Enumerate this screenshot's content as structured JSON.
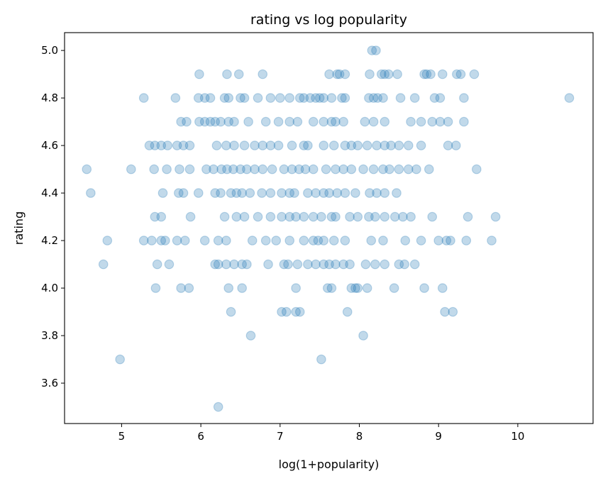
{
  "chart_data": {
    "type": "scatter",
    "title": "rating vs log popularity",
    "xlabel": "log(1+popularity)",
    "ylabel": "rating",
    "xlim": [
      4.28,
      10.95
    ],
    "ylim": [
      3.43,
      5.075
    ],
    "x_ticks": [
      5,
      6,
      7,
      8,
      9,
      10
    ],
    "y_ticks": [
      3.6,
      3.8,
      4.0,
      4.2,
      4.4,
      4.6,
      4.8,
      5.0
    ],
    "x_tick_labels": [
      "5",
      "6",
      "7",
      "8",
      "9",
      "10"
    ],
    "y_tick_labels": [
      "3.6",
      "3.8",
      "4.0",
      "4.2",
      "4.4",
      "4.6",
      "4.8",
      "5.0"
    ],
    "grid": false,
    "marker_color": "#1f77b4",
    "marker_alpha": 0.28,
    "points": [
      [
        8.16,
        5.0
      ],
      [
        8.21,
        5.0
      ],
      [
        5.98,
        4.9
      ],
      [
        6.33,
        4.9
      ],
      [
        6.48,
        4.9
      ],
      [
        6.78,
        4.9
      ],
      [
        7.62,
        4.9
      ],
      [
        7.72,
        4.9
      ],
      [
        7.75,
        4.9
      ],
      [
        7.82,
        4.9
      ],
      [
        8.13,
        4.9
      ],
      [
        8.28,
        4.9
      ],
      [
        8.32,
        4.9
      ],
      [
        8.37,
        4.9
      ],
      [
        8.48,
        4.9
      ],
      [
        8.82,
        4.9
      ],
      [
        8.85,
        4.9
      ],
      [
        8.9,
        4.9
      ],
      [
        9.05,
        4.9
      ],
      [
        9.23,
        4.9
      ],
      [
        9.28,
        4.9
      ],
      [
        9.45,
        4.9
      ],
      [
        5.28,
        4.8
      ],
      [
        5.68,
        4.8
      ],
      [
        5.97,
        4.8
      ],
      [
        6.05,
        4.8
      ],
      [
        6.12,
        4.8
      ],
      [
        6.3,
        4.8
      ],
      [
        6.35,
        4.8
      ],
      [
        6.5,
        4.8
      ],
      [
        6.55,
        4.8
      ],
      [
        6.72,
        4.8
      ],
      [
        6.88,
        4.8
      ],
      [
        7.0,
        4.8
      ],
      [
        7.12,
        4.8
      ],
      [
        7.25,
        4.8
      ],
      [
        7.3,
        4.8
      ],
      [
        7.38,
        4.8
      ],
      [
        7.45,
        4.8
      ],
      [
        7.5,
        4.8
      ],
      [
        7.55,
        4.8
      ],
      [
        7.65,
        4.8
      ],
      [
        7.78,
        4.8
      ],
      [
        7.82,
        4.8
      ],
      [
        8.12,
        4.8
      ],
      [
        8.18,
        4.8
      ],
      [
        8.23,
        4.8
      ],
      [
        8.3,
        4.8
      ],
      [
        8.52,
        4.8
      ],
      [
        8.7,
        4.8
      ],
      [
        8.95,
        4.8
      ],
      [
        9.02,
        4.8
      ],
      [
        9.32,
        4.8
      ],
      [
        10.65,
        4.8
      ],
      [
        5.75,
        4.7
      ],
      [
        5.82,
        4.7
      ],
      [
        5.98,
        4.7
      ],
      [
        6.05,
        4.7
      ],
      [
        6.12,
        4.7
      ],
      [
        6.18,
        4.7
      ],
      [
        6.25,
        4.7
      ],
      [
        6.35,
        4.7
      ],
      [
        6.42,
        4.7
      ],
      [
        6.6,
        4.7
      ],
      [
        6.82,
        4.7
      ],
      [
        6.98,
        4.7
      ],
      [
        7.12,
        4.7
      ],
      [
        7.22,
        4.7
      ],
      [
        7.42,
        4.7
      ],
      [
        7.55,
        4.7
      ],
      [
        7.65,
        4.7
      ],
      [
        7.7,
        4.7
      ],
      [
        7.8,
        4.7
      ],
      [
        8.07,
        4.7
      ],
      [
        8.18,
        4.7
      ],
      [
        8.32,
        4.7
      ],
      [
        8.65,
        4.7
      ],
      [
        8.78,
        4.7
      ],
      [
        8.92,
        4.7
      ],
      [
        9.02,
        4.7
      ],
      [
        9.12,
        4.7
      ],
      [
        9.32,
        4.7
      ],
      [
        5.35,
        4.6
      ],
      [
        5.42,
        4.6
      ],
      [
        5.5,
        4.6
      ],
      [
        5.58,
        4.6
      ],
      [
        5.7,
        4.6
      ],
      [
        5.78,
        4.6
      ],
      [
        5.86,
        4.6
      ],
      [
        6.2,
        4.6
      ],
      [
        6.32,
        4.6
      ],
      [
        6.42,
        4.6
      ],
      [
        6.55,
        4.6
      ],
      [
        6.68,
        4.6
      ],
      [
        6.78,
        4.6
      ],
      [
        6.88,
        4.6
      ],
      [
        6.98,
        4.6
      ],
      [
        7.15,
        4.6
      ],
      [
        7.3,
        4.6
      ],
      [
        7.35,
        4.6
      ],
      [
        7.55,
        4.6
      ],
      [
        7.68,
        4.6
      ],
      [
        7.82,
        4.6
      ],
      [
        7.9,
        4.6
      ],
      [
        7.98,
        4.6
      ],
      [
        8.1,
        4.6
      ],
      [
        8.22,
        4.6
      ],
      [
        8.32,
        4.6
      ],
      [
        8.4,
        4.6
      ],
      [
        8.5,
        4.6
      ],
      [
        8.62,
        4.6
      ],
      [
        8.78,
        4.6
      ],
      [
        9.12,
        4.6
      ],
      [
        9.22,
        4.6
      ],
      [
        4.56,
        4.5
      ],
      [
        5.12,
        4.5
      ],
      [
        5.41,
        4.5
      ],
      [
        5.57,
        4.5
      ],
      [
        5.73,
        4.5
      ],
      [
        5.86,
        4.5
      ],
      [
        6.07,
        4.5
      ],
      [
        6.16,
        4.5
      ],
      [
        6.26,
        4.5
      ],
      [
        6.33,
        4.5
      ],
      [
        6.41,
        4.5
      ],
      [
        6.5,
        4.5
      ],
      [
        6.58,
        4.5
      ],
      [
        6.68,
        4.5
      ],
      [
        6.78,
        4.5
      ],
      [
        6.9,
        4.5
      ],
      [
        7.05,
        4.5
      ],
      [
        7.15,
        4.5
      ],
      [
        7.24,
        4.5
      ],
      [
        7.32,
        4.5
      ],
      [
        7.42,
        4.5
      ],
      [
        7.58,
        4.5
      ],
      [
        7.7,
        4.5
      ],
      [
        7.8,
        4.5
      ],
      [
        7.9,
        4.5
      ],
      [
        8.05,
        4.5
      ],
      [
        8.18,
        4.5
      ],
      [
        8.3,
        4.5
      ],
      [
        8.38,
        4.5
      ],
      [
        8.5,
        4.5
      ],
      [
        8.62,
        4.5
      ],
      [
        8.72,
        4.5
      ],
      [
        8.88,
        4.5
      ],
      [
        9.48,
        4.5
      ],
      [
        4.61,
        4.4
      ],
      [
        5.52,
        4.4
      ],
      [
        5.72,
        4.4
      ],
      [
        5.78,
        4.4
      ],
      [
        5.97,
        4.4
      ],
      [
        6.18,
        4.4
      ],
      [
        6.25,
        4.4
      ],
      [
        6.38,
        4.4
      ],
      [
        6.45,
        4.4
      ],
      [
        6.52,
        4.4
      ],
      [
        6.62,
        4.4
      ],
      [
        6.77,
        4.4
      ],
      [
        6.88,
        4.4
      ],
      [
        7.02,
        4.4
      ],
      [
        7.12,
        4.4
      ],
      [
        7.18,
        4.4
      ],
      [
        7.35,
        4.4
      ],
      [
        7.45,
        4.4
      ],
      [
        7.55,
        4.4
      ],
      [
        7.62,
        4.4
      ],
      [
        7.72,
        4.4
      ],
      [
        7.82,
        4.4
      ],
      [
        7.95,
        4.4
      ],
      [
        8.13,
        4.4
      ],
      [
        8.22,
        4.4
      ],
      [
        8.32,
        4.4
      ],
      [
        8.47,
        4.4
      ],
      [
        5.42,
        4.3
      ],
      [
        5.5,
        4.3
      ],
      [
        5.87,
        4.3
      ],
      [
        6.3,
        4.3
      ],
      [
        6.45,
        4.3
      ],
      [
        6.55,
        4.3
      ],
      [
        6.72,
        4.3
      ],
      [
        6.88,
        4.3
      ],
      [
        7.02,
        4.3
      ],
      [
        7.12,
        4.3
      ],
      [
        7.2,
        4.3
      ],
      [
        7.3,
        4.3
      ],
      [
        7.42,
        4.3
      ],
      [
        7.52,
        4.3
      ],
      [
        7.65,
        4.3
      ],
      [
        7.7,
        4.3
      ],
      [
        7.88,
        4.3
      ],
      [
        7.98,
        4.3
      ],
      [
        8.12,
        4.3
      ],
      [
        8.2,
        4.3
      ],
      [
        8.32,
        4.3
      ],
      [
        8.45,
        4.3
      ],
      [
        8.55,
        4.3
      ],
      [
        8.65,
        4.3
      ],
      [
        8.92,
        4.3
      ],
      [
        9.37,
        4.3
      ],
      [
        9.72,
        4.3
      ],
      [
        4.82,
        4.2
      ],
      [
        5.28,
        4.2
      ],
      [
        5.38,
        4.2
      ],
      [
        5.5,
        4.2
      ],
      [
        5.55,
        4.2
      ],
      [
        5.7,
        4.2
      ],
      [
        5.8,
        4.2
      ],
      [
        6.05,
        4.2
      ],
      [
        6.22,
        4.2
      ],
      [
        6.32,
        4.2
      ],
      [
        6.65,
        4.2
      ],
      [
        6.82,
        4.2
      ],
      [
        6.95,
        4.2
      ],
      [
        7.12,
        4.2
      ],
      [
        7.3,
        4.2
      ],
      [
        7.42,
        4.2
      ],
      [
        7.48,
        4.2
      ],
      [
        7.55,
        4.2
      ],
      [
        7.68,
        4.2
      ],
      [
        7.82,
        4.2
      ],
      [
        8.15,
        4.2
      ],
      [
        8.3,
        4.2
      ],
      [
        8.58,
        4.2
      ],
      [
        8.78,
        4.2
      ],
      [
        9.0,
        4.2
      ],
      [
        9.1,
        4.2
      ],
      [
        9.15,
        4.2
      ],
      [
        9.35,
        4.2
      ],
      [
        9.67,
        4.2
      ],
      [
        4.77,
        4.1
      ],
      [
        5.45,
        4.1
      ],
      [
        5.6,
        4.1
      ],
      [
        6.18,
        4.1
      ],
      [
        6.22,
        4.1
      ],
      [
        6.32,
        4.1
      ],
      [
        6.42,
        4.1
      ],
      [
        6.52,
        4.1
      ],
      [
        6.58,
        4.1
      ],
      [
        6.85,
        4.1
      ],
      [
        7.05,
        4.1
      ],
      [
        7.1,
        4.1
      ],
      [
        7.22,
        4.1
      ],
      [
        7.35,
        4.1
      ],
      [
        7.45,
        4.1
      ],
      [
        7.55,
        4.1
      ],
      [
        7.62,
        4.1
      ],
      [
        7.7,
        4.1
      ],
      [
        7.8,
        4.1
      ],
      [
        7.88,
        4.1
      ],
      [
        8.08,
        4.1
      ],
      [
        8.2,
        4.1
      ],
      [
        8.32,
        4.1
      ],
      [
        8.5,
        4.1
      ],
      [
        8.57,
        4.1
      ],
      [
        8.7,
        4.1
      ],
      [
        5.43,
        4.0
      ],
      [
        5.75,
        4.0
      ],
      [
        5.85,
        4.0
      ],
      [
        6.35,
        4.0
      ],
      [
        6.52,
        4.0
      ],
      [
        7.2,
        4.0
      ],
      [
        7.6,
        4.0
      ],
      [
        7.65,
        4.0
      ],
      [
        7.9,
        4.0
      ],
      [
        7.95,
        4.0
      ],
      [
        7.98,
        4.0
      ],
      [
        8.1,
        4.0
      ],
      [
        8.44,
        4.0
      ],
      [
        8.82,
        4.0
      ],
      [
        9.05,
        4.0
      ],
      [
        6.38,
        3.9
      ],
      [
        7.02,
        3.9
      ],
      [
        7.08,
        3.9
      ],
      [
        7.2,
        3.9
      ],
      [
        7.25,
        3.9
      ],
      [
        7.85,
        3.9
      ],
      [
        9.08,
        3.9
      ],
      [
        9.18,
        3.9
      ],
      [
        6.63,
        3.8
      ],
      [
        8.05,
        3.8
      ],
      [
        4.98,
        3.7
      ],
      [
        7.52,
        3.7
      ],
      [
        6.22,
        3.5
      ]
    ]
  }
}
